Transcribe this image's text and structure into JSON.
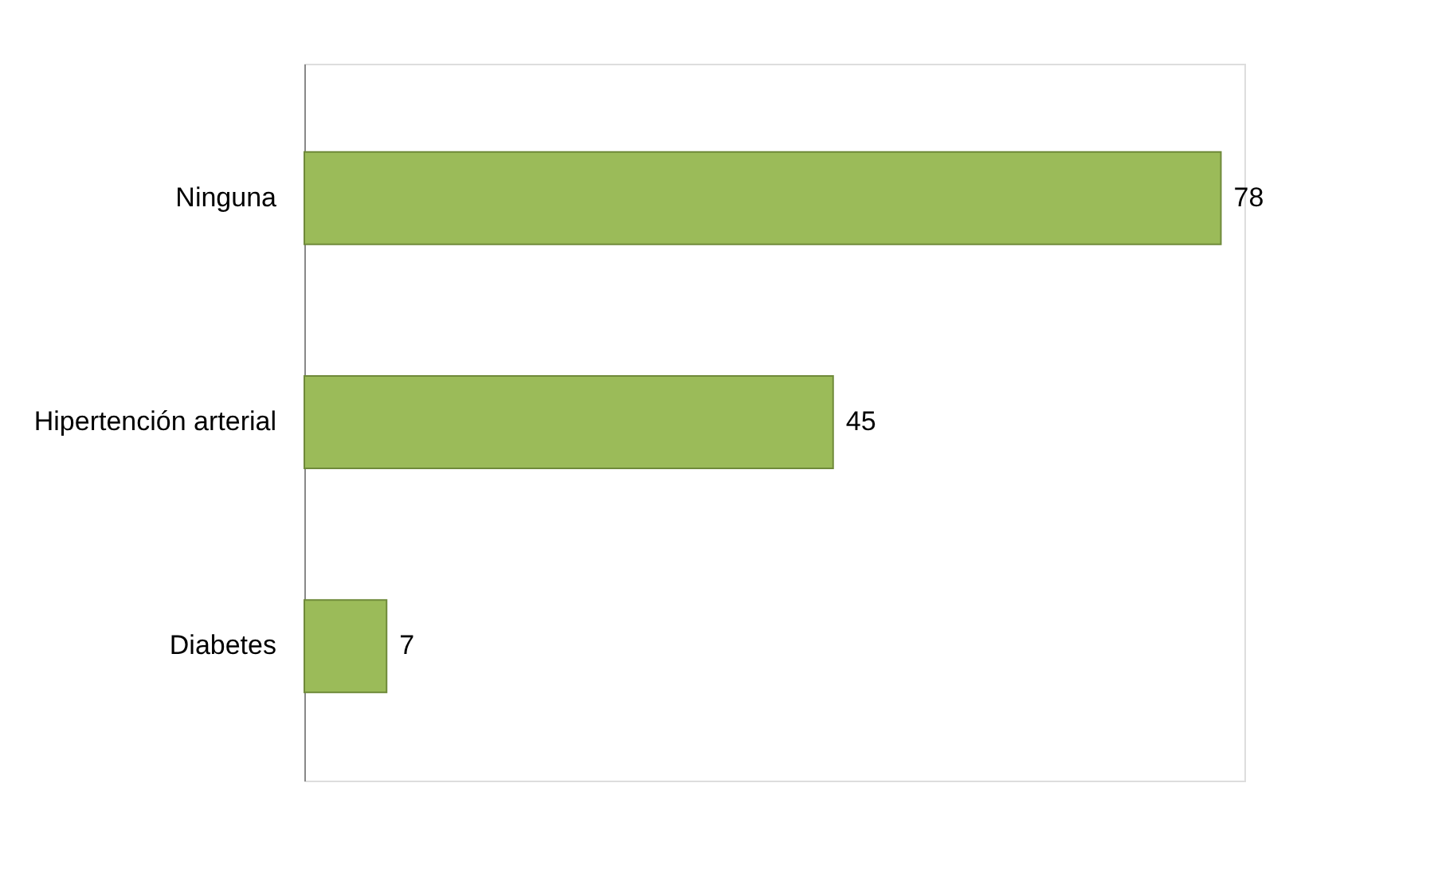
{
  "chart_data": {
    "type": "bar",
    "orientation": "horizontal",
    "categories": [
      "Ninguna",
      "Hipertención arterial",
      "Diabetes"
    ],
    "values": [
      78,
      45,
      7
    ],
    "color": "#9bbb59",
    "data_labels": true,
    "grid": false
  }
}
